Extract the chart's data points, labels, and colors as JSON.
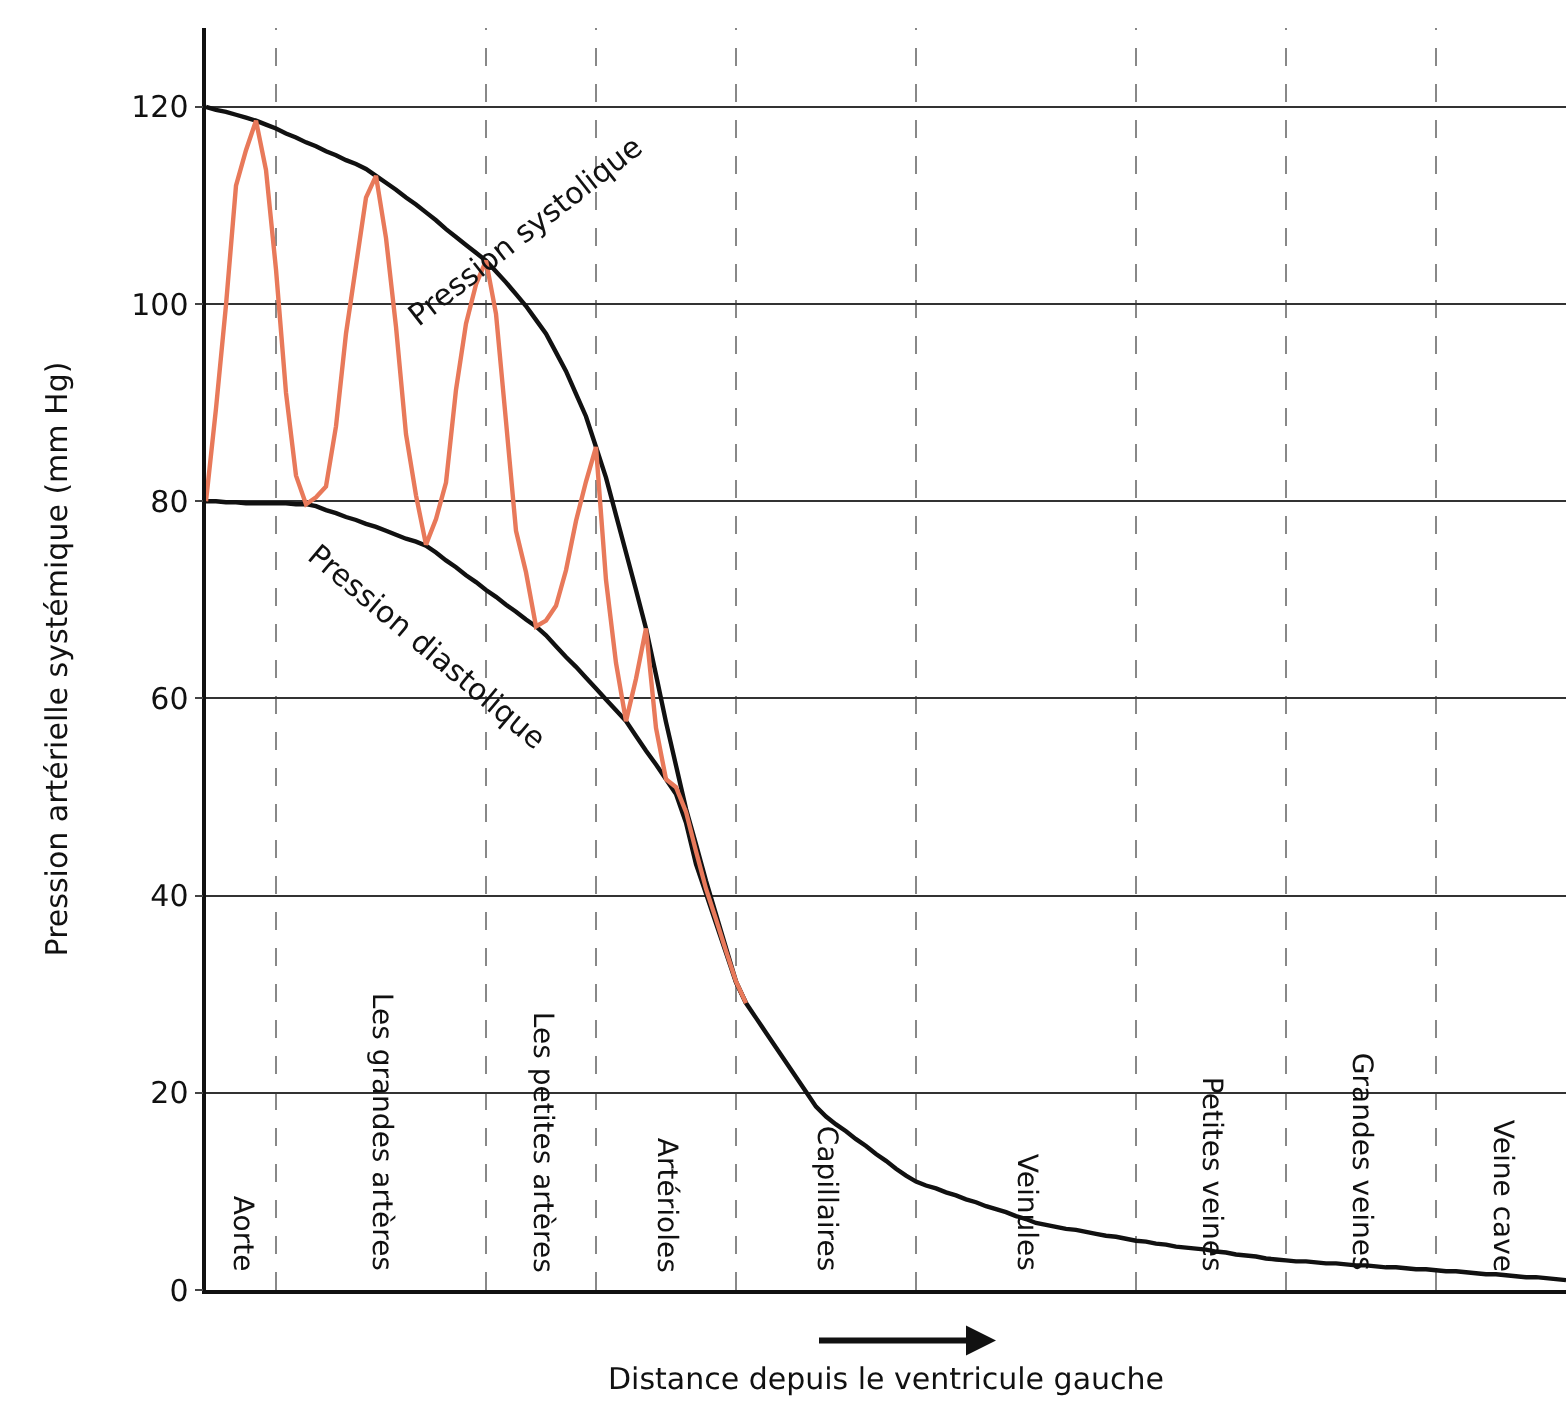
{
  "chart_data": {
    "type": "line",
    "xlabel": "Distance depuis le ventricule gauche",
    "ylabel": "Pression artérielle systémique (mm Hg)",
    "categories": [
      null,
      null,
      null,
      null,
      null,
      null,
      null,
      null,
      null,
      null,
      null,
      null,
      null,
      null,
      null,
      null,
      null,
      null,
      null,
      null,
      null,
      null,
      null,
      null,
      null,
      null,
      null,
      null,
      null,
      null,
      null,
      null,
      null,
      null,
      null,
      null,
      null,
      null,
      null,
      null,
      null,
      null,
      null,
      null,
      null,
      null,
      null,
      null,
      null,
      null,
      null,
      null,
      null,
      null,
      null,
      null,
      null,
      null,
      null,
      null,
      null,
      null,
      null,
      null,
      null,
      null,
      null,
      null,
      null,
      null,
      null,
      null,
      null,
      null,
      null,
      null,
      null,
      null,
      null,
      null,
      null,
      null,
      null,
      null,
      null,
      null,
      null,
      null,
      null,
      null,
      null,
      null,
      null,
      null,
      null,
      null,
      null,
      null,
      null,
      null,
      null,
      null,
      null,
      null,
      null,
      null,
      null,
      null,
      null,
      null,
      null,
      null,
      null,
      null,
      null,
      null,
      null,
      null,
      null,
      null,
      null,
      null,
      null,
      null,
      null,
      null,
      null,
      null,
      null,
      null,
      null,
      null,
      null,
      null,
      null,
      null,
      null
    ],
    "ylim": [
      0,
      128
    ],
    "yticks": [
      0,
      20,
      40,
      60,
      80,
      100,
      120
    ],
    "tick_labels": "y",
    "grid": "y",
    "legend": false,
    "marker": "none",
    "line_style": "solid",
    "series": [
      {
        "name": "Pression systolique",
        "color": "#111111",
        "values": [
          120,
          119.7,
          119.5,
          119.2,
          118.9,
          118.6,
          118.2,
          117.8,
          117.3,
          116.9,
          116.4,
          116.0,
          115.5,
          115.1,
          114.6,
          114.2,
          113.7,
          113.0,
          112.3,
          111.6,
          110.8,
          110.1,
          109.3,
          108.5,
          107.6,
          106.8,
          106.0,
          105.2,
          104.4,
          103.3,
          102.2,
          101.0,
          99.8,
          98.4,
          97.0,
          95.1,
          93.2,
          90.9,
          88.6,
          85.5,
          82.4,
          78.6,
          74.8,
          71.0,
          67.1,
          62.4,
          57.6,
          53.2,
          48.8,
          45.2,
          41.5,
          38.1,
          34.7,
          31.3,
          29.1,
          27.6,
          26.1,
          24.6,
          23.1,
          21.6,
          20.1,
          18.6,
          17.6,
          16.8,
          16.1,
          15.3,
          14.6,
          13.8,
          13.1,
          12.3,
          11.6,
          11.0,
          10.6,
          10.3,
          9.9,
          9.6,
          9.2,
          8.9,
          8.5,
          8.2,
          7.9,
          7.5,
          7.2,
          6.8,
          6.6,
          6.4,
          6.2,
          6.1,
          5.9,
          5.7,
          5.5,
          5.4,
          5.2,
          5.0,
          4.9,
          4.7,
          4.6,
          4.4,
          4.3,
          4.2,
          4.1,
          3.9,
          3.8,
          3.6,
          3.5,
          3.4,
          3.2,
          3.1,
          3.0,
          2.9,
          2.9,
          2.8,
          2.7,
          2.7,
          2.6,
          2.5,
          2.5,
          2.4,
          2.3,
          2.3,
          2.2,
          2.1,
          2.1,
          2.0,
          1.9,
          1.9,
          1.8,
          1.7,
          1.6,
          1.6,
          1.5,
          1.4,
          1.3,
          1.3,
          1.2,
          1.1,
          1.0
        ]
      },
      {
        "name": "Pression diastolique",
        "color": "#111111",
        "values": [
          80,
          80,
          79.9,
          79.9,
          79.8,
          79.8,
          79.8,
          79.8,
          79.8,
          79.7,
          79.7,
          79.5,
          79.1,
          78.8,
          78.4,
          78.1,
          77.7,
          77.4,
          77.0,
          76.6,
          76.2,
          75.9,
          75.5,
          74.8,
          74.0,
          73.3,
          72.5,
          71.8,
          71.0,
          70.3,
          69.5,
          68.8,
          68.0,
          67.3,
          66.4,
          65.3,
          64.2,
          63.2,
          62.1,
          61.0,
          59.9,
          58.8,
          57.7,
          56.2,
          54.7,
          53.3,
          51.8,
          50.3,
          47.4,
          43.2,
          40.2,
          37.2,
          34.2,
          31.2,
          29.1,
          null,
          null,
          null,
          null,
          null,
          null,
          null,
          null,
          null,
          null,
          null,
          null,
          null,
          null,
          null,
          null,
          null,
          null,
          null,
          null,
          null,
          null,
          null,
          null,
          null,
          null,
          null,
          null,
          null,
          null,
          null,
          null,
          null,
          null,
          null,
          null,
          null,
          null,
          null,
          null,
          null,
          null,
          null,
          null,
          null,
          null,
          null,
          null,
          null,
          null,
          null,
          null,
          null,
          null,
          null,
          null,
          null,
          null,
          null,
          null,
          null,
          null,
          null,
          null,
          null,
          null,
          null,
          null,
          null,
          null,
          null,
          null,
          null,
          null,
          null,
          null,
          null,
          null,
          null,
          null,
          null,
          null
        ]
      },
      {
        "color": "#e8795a",
        "values": [
          80,
          89.4,
          99.9,
          112,
          115.6,
          118.6,
          113.6,
          103.5,
          91,
          82.6,
          79.7,
          80.4,
          81.5,
          87.6,
          97,
          103.9,
          110.8,
          113.0,
          106.7,
          97.7,
          86.8,
          80.6,
          75.6,
          78.2,
          81.9,
          91.3,
          98,
          102,
          104.4,
          99,
          88.1,
          77,
          72.8,
          67.3,
          67.9,
          69.4,
          73,
          78,
          82,
          85.5,
          72,
          63.6,
          57.7,
          62,
          67.1,
          57,
          51.8,
          51,
          48.5,
          44.5,
          40.7,
          37.6,
          34.4,
          31.3,
          29.1,
          null,
          null,
          null,
          null,
          null,
          null,
          null,
          null,
          null,
          null,
          null,
          null,
          null,
          null,
          null,
          null,
          null,
          null,
          null,
          null,
          null,
          null,
          null,
          null,
          null,
          null,
          null,
          null,
          null,
          null,
          null,
          null,
          null,
          null,
          null,
          null,
          null,
          null,
          null,
          null,
          null,
          null,
          null,
          null,
          null,
          null,
          null,
          null,
          null,
          null,
          null,
          null,
          null,
          null,
          null,
          null,
          null,
          null,
          null,
          null,
          null,
          null,
          null,
          null,
          null,
          null,
          null,
          null,
          null,
          null,
          null,
          null,
          null,
          null,
          null,
          null,
          null,
          null,
          null,
          null,
          null,
          null
        ]
      }
    ],
    "annotations": [
      "Aorte",
      "Les grandes artères",
      "Les petites artères",
      "Artérioles",
      "Capillaires",
      "Veinules",
      "Petites veines",
      "Grandes veines",
      "Veine cave"
    ]
  }
}
